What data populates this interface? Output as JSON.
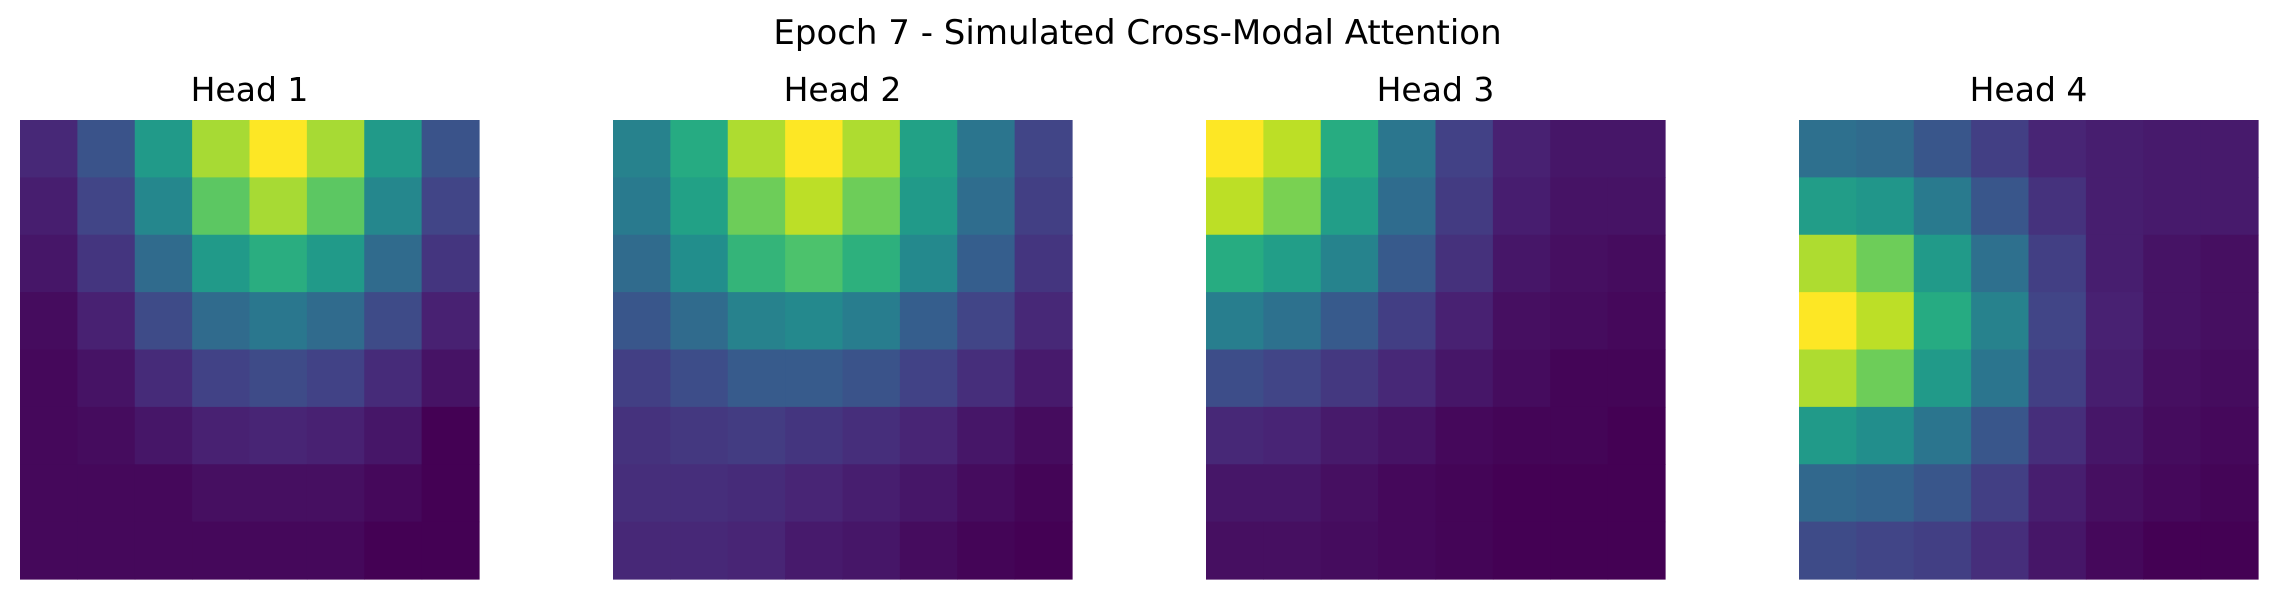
{
  "figure": {
    "title": "Epoch 7 - Simulated Cross-Modal Attention"
  },
  "chart_data": [
    {
      "type": "heatmap",
      "title": "Head 1",
      "colormap": "viridis",
      "axes": "off",
      "grid": false,
      "values": [
        [
          0.13,
          0.27,
          0.55,
          0.87,
          1.0,
          0.87,
          0.55,
          0.27
        ],
        [
          0.1,
          0.22,
          0.47,
          0.75,
          0.87,
          0.75,
          0.47,
          0.22
        ],
        [
          0.08,
          0.17,
          0.36,
          0.55,
          0.63,
          0.55,
          0.36,
          0.17
        ],
        [
          0.05,
          0.11,
          0.24,
          0.36,
          0.41,
          0.36,
          0.24,
          0.11
        ],
        [
          0.04,
          0.07,
          0.14,
          0.21,
          0.24,
          0.21,
          0.14,
          0.07
        ],
        [
          0.04,
          0.05,
          0.08,
          0.11,
          0.12,
          0.11,
          0.08,
          0.02
        ],
        [
          0.04,
          0.04,
          0.04,
          0.06,
          0.06,
          0.06,
          0.04,
          0.02
        ],
        [
          0.04,
          0.04,
          0.04,
          0.04,
          0.04,
          0.04,
          0.02,
          0.02
        ]
      ]
    },
    {
      "type": "heatmap",
      "title": "Head 2",
      "colormap": "viridis",
      "axes": "off",
      "grid": false,
      "values": [
        [
          0.45,
          0.62,
          0.88,
          1.0,
          0.88,
          0.58,
          0.4,
          0.22
        ],
        [
          0.42,
          0.58,
          0.78,
          0.9,
          0.78,
          0.55,
          0.37,
          0.2
        ],
        [
          0.36,
          0.5,
          0.66,
          0.72,
          0.64,
          0.48,
          0.31,
          0.17
        ],
        [
          0.28,
          0.36,
          0.45,
          0.48,
          0.43,
          0.31,
          0.22,
          0.13
        ],
        [
          0.2,
          0.25,
          0.3,
          0.3,
          0.27,
          0.21,
          0.15,
          0.09
        ],
        [
          0.16,
          0.18,
          0.19,
          0.17,
          0.15,
          0.12,
          0.08,
          0.05
        ],
        [
          0.15,
          0.15,
          0.14,
          0.12,
          0.1,
          0.08,
          0.05,
          0.03
        ],
        [
          0.13,
          0.13,
          0.12,
          0.09,
          0.08,
          0.05,
          0.03,
          0.02
        ]
      ]
    },
    {
      "type": "heatmap",
      "title": "Head 3",
      "colormap": "viridis",
      "axes": "off",
      "grid": false,
      "values": [
        [
          1.0,
          0.9,
          0.62,
          0.4,
          0.2,
          0.1,
          0.07,
          0.07
        ],
        [
          0.9,
          0.8,
          0.56,
          0.36,
          0.18,
          0.09,
          0.06,
          0.06
        ],
        [
          0.62,
          0.56,
          0.45,
          0.29,
          0.15,
          0.07,
          0.05,
          0.04
        ],
        [
          0.43,
          0.38,
          0.29,
          0.19,
          0.1,
          0.05,
          0.04,
          0.03
        ],
        [
          0.24,
          0.21,
          0.17,
          0.12,
          0.07,
          0.04,
          0.02,
          0.02
        ],
        [
          0.12,
          0.11,
          0.08,
          0.06,
          0.03,
          0.02,
          0.02,
          0.01
        ],
        [
          0.07,
          0.07,
          0.05,
          0.03,
          0.02,
          0.01,
          0.01,
          0.01
        ],
        [
          0.05,
          0.05,
          0.04,
          0.03,
          0.02,
          0.01,
          0.01,
          0.01
        ]
      ]
    },
    {
      "type": "heatmap",
      "title": "Head 4",
      "colormap": "viridis",
      "axes": "off",
      "grid": false,
      "values": [
        [
          0.38,
          0.36,
          0.28,
          0.2,
          0.12,
          0.1,
          0.09,
          0.09
        ],
        [
          0.56,
          0.53,
          0.42,
          0.28,
          0.16,
          0.1,
          0.09,
          0.09
        ],
        [
          0.88,
          0.78,
          0.55,
          0.38,
          0.2,
          0.1,
          0.07,
          0.06
        ],
        [
          1.0,
          0.9,
          0.62,
          0.45,
          0.22,
          0.11,
          0.07,
          0.06
        ],
        [
          0.88,
          0.78,
          0.55,
          0.4,
          0.2,
          0.1,
          0.06,
          0.05
        ],
        [
          0.55,
          0.5,
          0.4,
          0.28,
          0.15,
          0.08,
          0.05,
          0.04
        ],
        [
          0.35,
          0.33,
          0.28,
          0.2,
          0.1,
          0.06,
          0.04,
          0.03
        ],
        [
          0.24,
          0.22,
          0.2,
          0.15,
          0.08,
          0.04,
          0.02,
          0.02
        ]
      ]
    }
  ]
}
